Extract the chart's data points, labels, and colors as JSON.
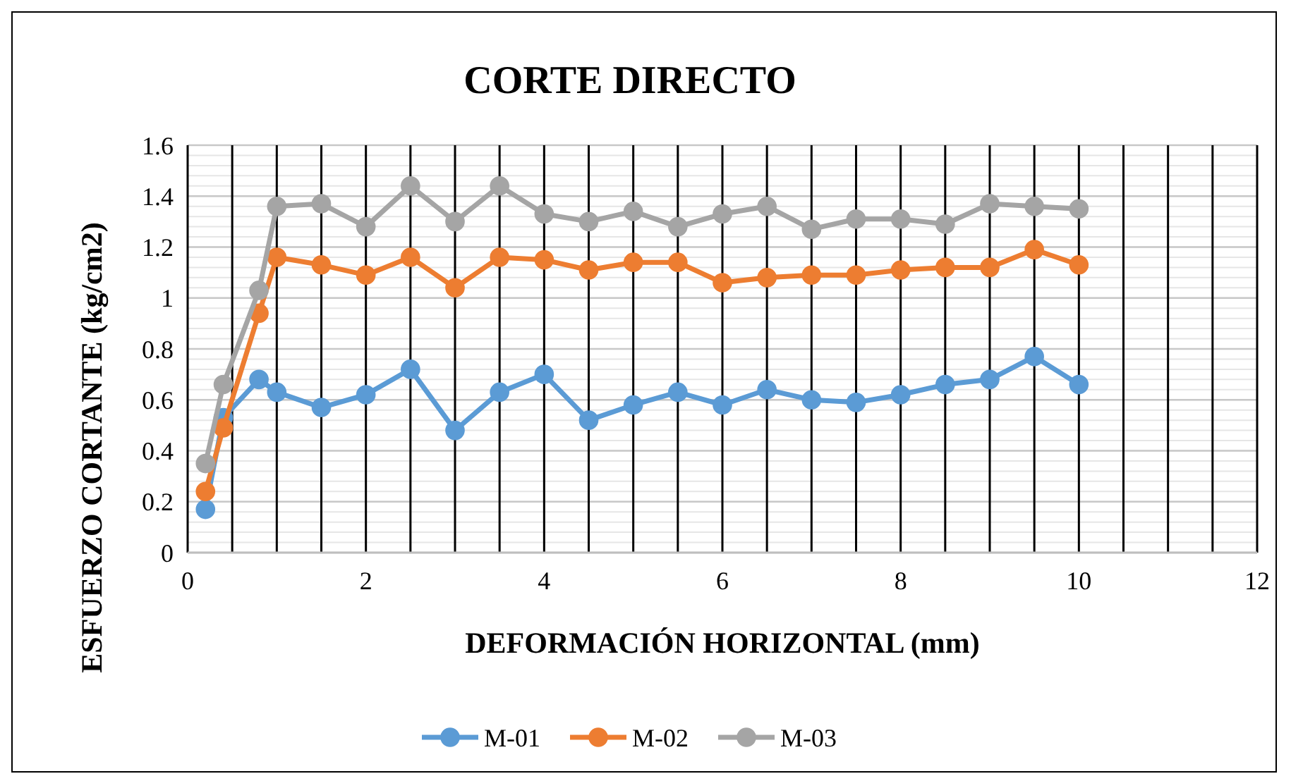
{
  "chart_data": {
    "type": "line",
    "title": "CORTE DIRECTO",
    "xlabel": "DEFORMACIÓN HORIZONTAL (mm)",
    "ylabel": "ESFUERZO CORTANTE (kg/cm2)",
    "x": [
      0.2,
      0.4,
      0.8,
      1,
      1.5,
      2,
      2.5,
      3,
      3.5,
      4,
      4.5,
      5,
      5.5,
      6,
      6.5,
      7,
      7.5,
      8,
      8.5,
      9,
      9.5,
      10
    ],
    "series": [
      {
        "name": "M-01",
        "color": "#5b9bd5",
        "values": [
          0.17,
          0.53,
          0.68,
          0.63,
          0.57,
          0.62,
          0.72,
          0.48,
          0.63,
          0.7,
          0.52,
          0.58,
          0.63,
          0.58,
          0.64,
          0.6,
          0.59,
          0.62,
          0.66,
          0.68,
          0.77,
          0.66
        ]
      },
      {
        "name": "M-02",
        "color": "#ed7d31",
        "values": [
          0.24,
          0.49,
          0.94,
          1.16,
          1.13,
          1.09,
          1.16,
          1.04,
          1.16,
          1.15,
          1.11,
          1.14,
          1.14,
          1.06,
          1.08,
          1.09,
          1.09,
          1.11,
          1.12,
          1.12,
          1.19,
          1.13
        ]
      },
      {
        "name": "M-03",
        "color": "#a5a5a5",
        "values": [
          0.35,
          0.66,
          1.03,
          1.36,
          1.37,
          1.28,
          1.44,
          1.3,
          1.44,
          1.33,
          1.3,
          1.34,
          1.28,
          1.33,
          1.36,
          1.27,
          1.31,
          1.31,
          1.29,
          1.37,
          1.36,
          1.35
        ]
      }
    ],
    "xlim": [
      0,
      12
    ],
    "xticks": [
      0,
      2,
      4,
      6,
      8,
      10,
      12
    ],
    "ylim": [
      0,
      1.6
    ],
    "yticks": [
      0,
      0.2,
      0.4,
      0.6,
      0.8,
      1,
      1.2,
      1.4,
      1.6
    ],
    "grid": true,
    "legend": "bottom",
    "marker": "circle",
    "line_style": "solid"
  }
}
